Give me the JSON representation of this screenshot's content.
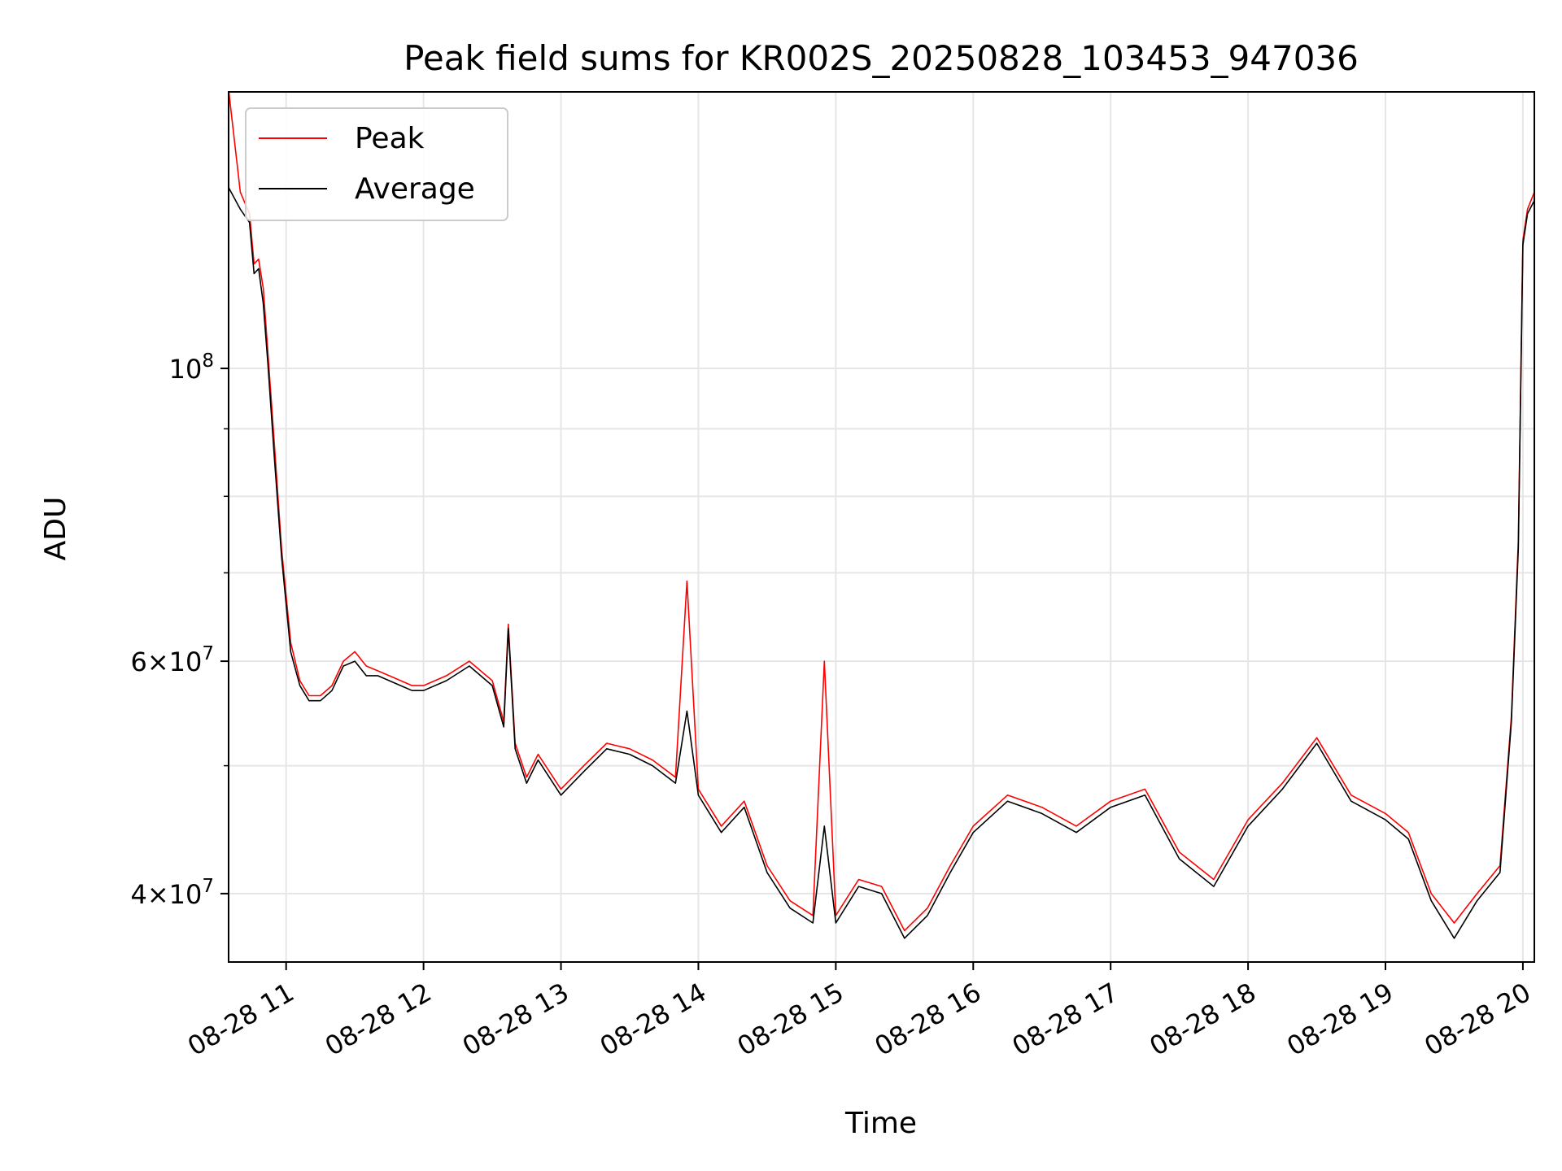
{
  "chart_data": {
    "type": "line",
    "title": "Peak field sums for KR002S_20250828_103453_947036",
    "xlabel": "Time",
    "ylabel": "ADU",
    "y_scale": "log",
    "xlim": [
      "2025-08-28 10:34:53",
      "2025-08-28 20:05:00"
    ],
    "ylim": [
      35500000,
      162000000
    ],
    "grid": true,
    "legend_position": "top-left",
    "x_ticks": [
      "08-28 11",
      "08-28 12",
      "08-28 13",
      "08-28 14",
      "08-28 15",
      "08-28 16",
      "08-28 17",
      "08-28 18",
      "08-28 19",
      "08-28 20"
    ],
    "y_major_ticks": [
      {
        "value": 100000000,
        "base": "10",
        "exp": "8"
      },
      {
        "value": 60000000,
        "base": "6×10",
        "exp": "7"
      },
      {
        "value": 40000000,
        "base": "4×10",
        "exp": "7"
      }
    ],
    "y_minor_ticks": [
      50000000,
      70000000,
      80000000,
      90000000
    ],
    "x": [
      "2025-08-28 10:35",
      "2025-08-28 10:40",
      "2025-08-28 10:44",
      "2025-08-28 10:46",
      "2025-08-28 10:48",
      "2025-08-28 10:50",
      "2025-08-28 10:52",
      "2025-08-28 10:55",
      "2025-08-28 10:58",
      "2025-08-28 11:02",
      "2025-08-28 11:06",
      "2025-08-28 11:10",
      "2025-08-28 11:15",
      "2025-08-28 11:20",
      "2025-08-28 11:25",
      "2025-08-28 11:30",
      "2025-08-28 11:35",
      "2025-08-28 11:40",
      "2025-08-28 11:45",
      "2025-08-28 11:50",
      "2025-08-28 11:55",
      "2025-08-28 12:00",
      "2025-08-28 12:10",
      "2025-08-28 12:20",
      "2025-08-28 12:30",
      "2025-08-28 12:35",
      "2025-08-28 12:37",
      "2025-08-28 12:40",
      "2025-08-28 12:45",
      "2025-08-28 12:50",
      "2025-08-28 13:00",
      "2025-08-28 13:10",
      "2025-08-28 13:20",
      "2025-08-28 13:30",
      "2025-08-28 13:40",
      "2025-08-28 13:50",
      "2025-08-28 13:55",
      "2025-08-28 14:00",
      "2025-08-28 14:10",
      "2025-08-28 14:20",
      "2025-08-28 14:30",
      "2025-08-28 14:40",
      "2025-08-28 14:50",
      "2025-08-28 14:55",
      "2025-08-28 15:00",
      "2025-08-28 15:10",
      "2025-08-28 15:20",
      "2025-08-28 15:30",
      "2025-08-28 15:40",
      "2025-08-28 15:50",
      "2025-08-28 16:00",
      "2025-08-28 16:15",
      "2025-08-28 16:30",
      "2025-08-28 16:45",
      "2025-08-28 17:00",
      "2025-08-28 17:15",
      "2025-08-28 17:30",
      "2025-08-28 17:45",
      "2025-08-28 18:00",
      "2025-08-28 18:15",
      "2025-08-28 18:30",
      "2025-08-28 18:45",
      "2025-08-28 19:00",
      "2025-08-28 19:10",
      "2025-08-28 19:20",
      "2025-08-28 19:30",
      "2025-08-28 19:40",
      "2025-08-28 19:50",
      "2025-08-28 19:55",
      "2025-08-28 19:58",
      "2025-08-28 20:00",
      "2025-08-28 20:02",
      "2025-08-28 20:05"
    ],
    "series": [
      {
        "name": "Peak",
        "color": "#ff0000",
        "values": [
          162000000,
          136000000,
          131000000,
          120000000,
          121000000,
          115000000,
          103000000,
          87000000,
          73000000,
          62000000,
          58000000,
          56500000,
          56500000,
          57500000,
          60000000,
          61000000,
          59500000,
          59000000,
          58500000,
          58000000,
          57500000,
          57500000,
          58500000,
          60000000,
          58000000,
          54000000,
          64000000,
          52000000,
          49000000,
          51000000,
          48000000,
          50000000,
          52000000,
          51500000,
          50500000,
          49000000,
          69000000,
          48000000,
          45000000,
          47000000,
          42000000,
          39500000,
          38500000,
          60000000,
          38500000,
          41000000,
          40500000,
          37500000,
          39000000,
          42000000,
          45000000,
          47500000,
          46500000,
          45000000,
          47000000,
          48000000,
          43000000,
          41000000,
          45500000,
          48500000,
          52500000,
          47500000,
          46000000,
          44500000,
          40000000,
          38000000,
          40000000,
          42000000,
          54500000,
          74000000,
          125000000,
          132000000,
          136000000
        ]
      },
      {
        "name": "Average",
        "color": "#000000",
        "values": [
          137000000,
          132000000,
          129000000,
          118000000,
          119000000,
          112000000,
          101000000,
          85000000,
          72000000,
          61000000,
          57500000,
          56000000,
          56000000,
          57000000,
          59500000,
          60000000,
          58500000,
          58500000,
          58000000,
          57500000,
          57000000,
          57000000,
          58000000,
          59500000,
          57500000,
          53500000,
          63500000,
          51500000,
          48500000,
          50500000,
          47500000,
          49500000,
          51500000,
          51000000,
          50000000,
          48500000,
          55000000,
          47500000,
          44500000,
          46500000,
          41500000,
          39000000,
          38000000,
          45000000,
          38000000,
          40500000,
          40000000,
          37000000,
          38500000,
          41500000,
          44500000,
          47000000,
          46000000,
          44500000,
          46500000,
          47500000,
          42500000,
          40500000,
          45000000,
          48000000,
          52000000,
          47000000,
          45500000,
          44000000,
          39500000,
          37000000,
          39500000,
          41500000,
          54000000,
          73000000,
          124000000,
          131000000,
          134000000
        ]
      }
    ]
  }
}
